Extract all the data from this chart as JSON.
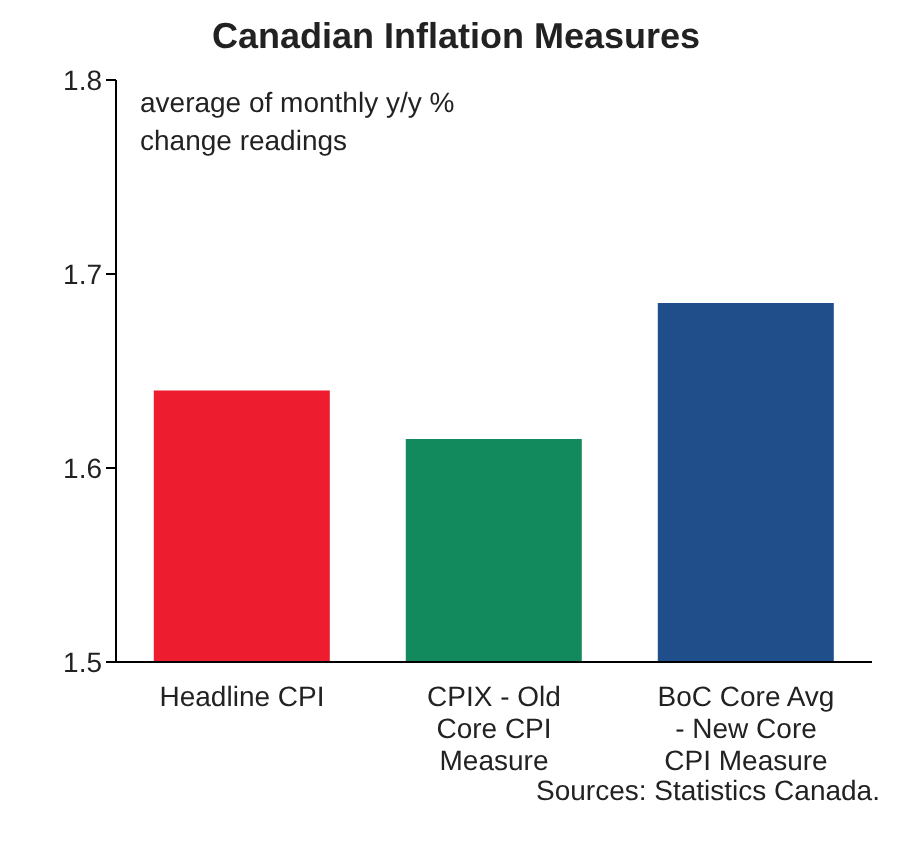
{
  "chart_data": {
    "type": "bar",
    "title": "Canadian Inflation Measures",
    "categories": [
      "Headline CPI",
      "CPIX - Old Core CPI Measure",
      "BoC Core Avg - New Core CPI Measure"
    ],
    "values": [
      1.64,
      1.615,
      1.685
    ],
    "colors": [
      "#ed1c2e",
      "#138a5e",
      "#1f4e8a"
    ],
    "ylim": [
      1.5,
      1.8
    ],
    "yticks": [
      1.5,
      1.6,
      1.7,
      1.8
    ],
    "grid": false,
    "legend": false,
    "annotations": [
      "average of monthly y/y % change readings",
      "Sources: Statistics Canada."
    ]
  }
}
